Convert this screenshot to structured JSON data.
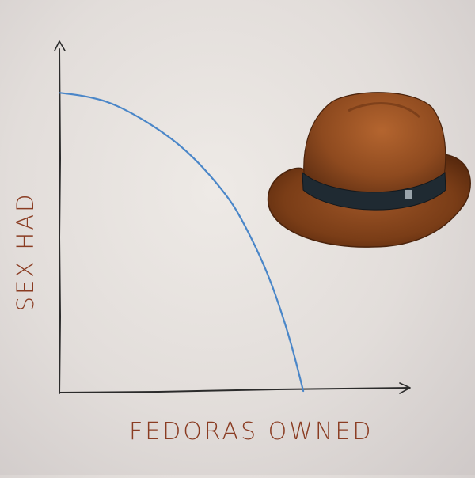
{
  "chart_data": {
    "type": "line",
    "title": "",
    "xlabel": "FEDORAS OWNED",
    "ylabel": "SEX HAD",
    "series": [
      {
        "x": [
          0,
          0.1,
          0.2,
          0.3,
          0.4,
          0.5,
          0.6,
          0.7,
          0.75,
          0.8,
          0.85,
          0.9,
          0.95,
          1.0
        ],
        "y": [
          1.0,
          0.99,
          0.97,
          0.93,
          0.88,
          0.82,
          0.74,
          0.64,
          0.57,
          0.49,
          0.4,
          0.29,
          0.16,
          0.0
        ]
      }
    ],
    "xlim": [
      0,
      1.4
    ],
    "ylim": [
      0,
      1.2
    ],
    "grid": false,
    "colors": {
      "curve": "#4a86c8",
      "axis": "#2b2b2b",
      "label": "#8a3c22"
    },
    "illustration": "fedora-hat"
  }
}
